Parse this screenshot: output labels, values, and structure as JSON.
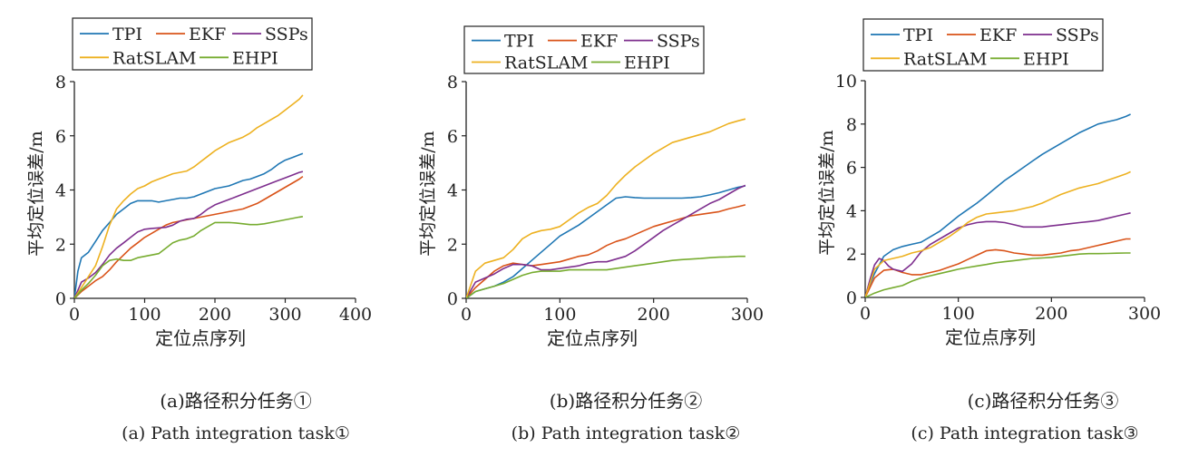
{
  "colors": {
    "TPI": "#1f77b4",
    "EKF": "#d95319",
    "SSPs": "#7e2f8e",
    "RatSLAM": "#edb120",
    "EHPI": "#77ac30"
  },
  "legend_labels": [
    "TPI",
    "EKF",
    "SSPs",
    "RatSLAM",
    "EHPI"
  ],
  "captions": [
    {
      "zh": "(a)路径积分任务①",
      "en": "(a) Path integration task①"
    },
    {
      "zh": "(b)路径积分任务②",
      "en": "(b) Path integration task②"
    },
    {
      "zh": "(c)路径积分任务③",
      "en": "(c) Path integration task③"
    }
  ],
  "chart_data": [
    {
      "type": "line",
      "xlabel": "定位点序列",
      "ylabel": "平均定位误差/m",
      "xlim": [
        0,
        400
      ],
      "ylim": [
        0,
        8
      ],
      "xticks": [
        0,
        100,
        200,
        300,
        400
      ],
      "yticks": [
        0,
        2,
        4,
        6,
        8
      ],
      "legend_position": "top",
      "series": [
        {
          "name": "TPI",
          "x": [
            0,
            5,
            10,
            20,
            30,
            40,
            50,
            60,
            70,
            80,
            90,
            100,
            110,
            120,
            130,
            140,
            150,
            160,
            170,
            180,
            190,
            200,
            210,
            220,
            230,
            240,
            250,
            260,
            270,
            280,
            290,
            300,
            310,
            320,
            325
          ],
          "y": [
            0,
            1.0,
            1.5,
            1.7,
            2.1,
            2.5,
            2.8,
            3.1,
            3.3,
            3.5,
            3.6,
            3.6,
            3.6,
            3.55,
            3.6,
            3.65,
            3.7,
            3.7,
            3.75,
            3.85,
            3.95,
            4.05,
            4.1,
            4.15,
            4.25,
            4.35,
            4.4,
            4.5,
            4.6,
            4.75,
            4.95,
            5.1,
            5.2,
            5.3,
            5.35
          ]
        },
        {
          "name": "EKF",
          "x": [
            0,
            10,
            20,
            30,
            40,
            50,
            60,
            70,
            80,
            90,
            100,
            110,
            120,
            130,
            140,
            150,
            160,
            170,
            180,
            190,
            200,
            210,
            220,
            230,
            240,
            250,
            260,
            270,
            280,
            290,
            300,
            310,
            320,
            325
          ],
          "y": [
            0,
            0.25,
            0.45,
            0.65,
            0.8,
            1.05,
            1.35,
            1.6,
            1.85,
            2.05,
            2.25,
            2.4,
            2.55,
            2.7,
            2.8,
            2.85,
            2.9,
            2.95,
            3.0,
            3.05,
            3.1,
            3.15,
            3.2,
            3.25,
            3.3,
            3.4,
            3.5,
            3.65,
            3.8,
            3.95,
            4.1,
            4.25,
            4.4,
            4.5
          ]
        },
        {
          "name": "SSPs",
          "x": [
            0,
            10,
            20,
            30,
            40,
            50,
            60,
            70,
            80,
            90,
            100,
            110,
            120,
            130,
            140,
            150,
            160,
            170,
            180,
            190,
            200,
            210,
            220,
            230,
            240,
            250,
            260,
            270,
            280,
            290,
            300,
            310,
            320,
            325
          ],
          "y": [
            0,
            0.6,
            0.75,
            0.95,
            1.25,
            1.6,
            1.85,
            2.05,
            2.25,
            2.45,
            2.55,
            2.58,
            2.6,
            2.62,
            2.7,
            2.85,
            2.92,
            2.95,
            3.1,
            3.3,
            3.45,
            3.55,
            3.65,
            3.75,
            3.85,
            3.95,
            4.05,
            4.15,
            4.25,
            4.35,
            4.45,
            4.55,
            4.65,
            4.68
          ]
        },
        {
          "name": "RatSLAM",
          "x": [
            0,
            10,
            20,
            30,
            40,
            50,
            60,
            70,
            80,
            90,
            100,
            110,
            120,
            130,
            140,
            150,
            160,
            170,
            180,
            190,
            200,
            210,
            220,
            230,
            240,
            250,
            260,
            270,
            280,
            290,
            300,
            310,
            320,
            325
          ],
          "y": [
            0,
            0.4,
            0.8,
            1.2,
            1.9,
            2.7,
            3.3,
            3.6,
            3.85,
            4.05,
            4.15,
            4.3,
            4.4,
            4.5,
            4.6,
            4.65,
            4.7,
            4.85,
            5.05,
            5.25,
            5.45,
            5.6,
            5.75,
            5.85,
            5.95,
            6.1,
            6.3,
            6.45,
            6.6,
            6.75,
            6.95,
            7.15,
            7.35,
            7.5
          ]
        },
        {
          "name": "EHPI",
          "x": [
            0,
            10,
            20,
            30,
            40,
            50,
            60,
            70,
            80,
            90,
            100,
            110,
            120,
            130,
            140,
            150,
            160,
            170,
            180,
            190,
            200,
            210,
            220,
            230,
            240,
            250,
            260,
            270,
            280,
            290,
            300,
            310,
            320,
            325
          ],
          "y": [
            0,
            0.3,
            0.55,
            0.85,
            1.2,
            1.4,
            1.45,
            1.4,
            1.4,
            1.5,
            1.55,
            1.6,
            1.65,
            1.85,
            2.05,
            2.15,
            2.2,
            2.3,
            2.5,
            2.65,
            2.8,
            2.8,
            2.8,
            2.78,
            2.75,
            2.72,
            2.72,
            2.75,
            2.8,
            2.85,
            2.9,
            2.95,
            3.0,
            3.02
          ]
        }
      ]
    },
    {
      "type": "line",
      "xlabel": "定位点序列",
      "ylabel": "平均定位误差/m",
      "xlim": [
        0,
        300
      ],
      "ylim": [
        0,
        8
      ],
      "xticks": [
        0,
        100,
        200,
        300
      ],
      "yticks": [
        0,
        2,
        4,
        6,
        8
      ],
      "legend_position": "top",
      "series": [
        {
          "name": "TPI",
          "x": [
            0,
            10,
            20,
            30,
            40,
            50,
            60,
            70,
            80,
            90,
            100,
            110,
            120,
            130,
            140,
            150,
            160,
            170,
            180,
            190,
            200,
            210,
            220,
            230,
            240,
            250,
            260,
            270,
            280,
            290,
            298
          ],
          "y": [
            0,
            0.25,
            0.35,
            0.45,
            0.6,
            0.8,
            1.1,
            1.4,
            1.7,
            2.0,
            2.3,
            2.5,
            2.7,
            2.95,
            3.2,
            3.45,
            3.7,
            3.75,
            3.72,
            3.7,
            3.7,
            3.7,
            3.7,
            3.7,
            3.72,
            3.75,
            3.82,
            3.9,
            4.0,
            4.1,
            4.15
          ]
        },
        {
          "name": "EKF",
          "x": [
            0,
            10,
            20,
            30,
            40,
            50,
            60,
            70,
            80,
            90,
            100,
            110,
            120,
            130,
            140,
            150,
            160,
            170,
            180,
            190,
            200,
            210,
            220,
            230,
            240,
            250,
            260,
            270,
            280,
            290,
            298
          ],
          "y": [
            0,
            0.4,
            0.7,
            1.0,
            1.2,
            1.3,
            1.25,
            1.2,
            1.25,
            1.3,
            1.35,
            1.45,
            1.55,
            1.6,
            1.75,
            1.95,
            2.1,
            2.2,
            2.35,
            2.5,
            2.65,
            2.75,
            2.85,
            2.95,
            3.05,
            3.1,
            3.15,
            3.2,
            3.3,
            3.38,
            3.45
          ]
        },
        {
          "name": "SSPs",
          "x": [
            0,
            10,
            20,
            30,
            40,
            50,
            60,
            70,
            80,
            90,
            100,
            110,
            120,
            130,
            140,
            150,
            160,
            170,
            180,
            190,
            200,
            210,
            220,
            230,
            240,
            250,
            260,
            270,
            280,
            290,
            298
          ],
          "y": [
            0,
            0.6,
            0.75,
            0.9,
            1.1,
            1.25,
            1.25,
            1.2,
            1.05,
            1.05,
            1.1,
            1.15,
            1.2,
            1.3,
            1.35,
            1.35,
            1.45,
            1.55,
            1.75,
            2.0,
            2.25,
            2.5,
            2.7,
            2.9,
            3.1,
            3.3,
            3.5,
            3.65,
            3.85,
            4.05,
            4.17
          ]
        },
        {
          "name": "RatSLAM",
          "x": [
            0,
            10,
            20,
            30,
            40,
            50,
            60,
            70,
            80,
            90,
            100,
            110,
            120,
            130,
            140,
            150,
            160,
            170,
            180,
            190,
            200,
            210,
            220,
            230,
            240,
            250,
            260,
            270,
            280,
            290,
            298
          ],
          "y": [
            0,
            1.0,
            1.3,
            1.4,
            1.5,
            1.8,
            2.2,
            2.4,
            2.5,
            2.55,
            2.65,
            2.9,
            3.15,
            3.35,
            3.5,
            3.8,
            4.2,
            4.55,
            4.85,
            5.1,
            5.35,
            5.55,
            5.75,
            5.85,
            5.95,
            6.05,
            6.15,
            6.3,
            6.45,
            6.55,
            6.62
          ]
        },
        {
          "name": "EHPI",
          "x": [
            0,
            10,
            20,
            30,
            40,
            50,
            60,
            70,
            80,
            90,
            100,
            110,
            120,
            130,
            140,
            150,
            160,
            170,
            180,
            190,
            200,
            210,
            220,
            230,
            240,
            250,
            260,
            270,
            280,
            290,
            298
          ],
          "y": [
            0,
            0.25,
            0.35,
            0.45,
            0.55,
            0.7,
            0.85,
            0.95,
            1.0,
            1.0,
            1.0,
            1.05,
            1.05,
            1.05,
            1.05,
            1.05,
            1.1,
            1.15,
            1.2,
            1.25,
            1.3,
            1.35,
            1.4,
            1.43,
            1.45,
            1.47,
            1.5,
            1.52,
            1.53,
            1.55,
            1.55
          ]
        }
      ]
    },
    {
      "type": "line",
      "xlabel": "定位点序列",
      "ylabel": "平均定位误差/m",
      "xlim": [
        0,
        300
      ],
      "ylim": [
        0,
        10
      ],
      "xticks": [
        0,
        100,
        200,
        300
      ],
      "yticks": [
        0,
        2,
        4,
        6,
        8,
        10
      ],
      "legend_position": "top",
      "series": [
        {
          "name": "TPI",
          "x": [
            0,
            5,
            10,
            15,
            20,
            30,
            40,
            50,
            60,
            70,
            80,
            90,
            100,
            110,
            120,
            130,
            140,
            150,
            160,
            170,
            180,
            190,
            200,
            210,
            220,
            230,
            240,
            250,
            260,
            270,
            280,
            285
          ],
          "y": [
            0,
            0.6,
            1.1,
            1.5,
            1.9,
            2.2,
            2.35,
            2.45,
            2.55,
            2.8,
            3.05,
            3.4,
            3.75,
            4.05,
            4.35,
            4.7,
            5.05,
            5.4,
            5.7,
            6.0,
            6.3,
            6.6,
            6.85,
            7.1,
            7.35,
            7.6,
            7.8,
            8.0,
            8.1,
            8.2,
            8.35,
            8.45
          ]
        },
        {
          "name": "EKF",
          "x": [
            0,
            10,
            20,
            30,
            40,
            50,
            60,
            70,
            80,
            90,
            100,
            110,
            120,
            130,
            140,
            150,
            160,
            170,
            180,
            190,
            200,
            210,
            220,
            230,
            240,
            250,
            260,
            270,
            280,
            285
          ],
          "y": [
            0,
            0.9,
            1.25,
            1.3,
            1.15,
            1.05,
            1.05,
            1.15,
            1.25,
            1.4,
            1.55,
            1.75,
            1.95,
            2.15,
            2.2,
            2.15,
            2.05,
            2.0,
            1.95,
            1.95,
            2.0,
            2.05,
            2.15,
            2.2,
            2.3,
            2.4,
            2.5,
            2.6,
            2.7,
            2.7
          ]
        },
        {
          "name": "SSPs",
          "x": [
            0,
            5,
            10,
            15,
            20,
            25,
            30,
            40,
            50,
            60,
            70,
            80,
            90,
            100,
            110,
            120,
            130,
            140,
            150,
            160,
            170,
            180,
            190,
            200,
            210,
            220,
            230,
            240,
            250,
            260,
            270,
            280,
            285
          ],
          "y": [
            0,
            0.8,
            1.5,
            1.8,
            1.7,
            1.45,
            1.3,
            1.2,
            1.55,
            2.1,
            2.45,
            2.7,
            2.95,
            3.2,
            3.35,
            3.45,
            3.5,
            3.5,
            3.45,
            3.35,
            3.25,
            3.25,
            3.25,
            3.3,
            3.35,
            3.4,
            3.45,
            3.5,
            3.55,
            3.65,
            3.75,
            3.85,
            3.9
          ]
        },
        {
          "name": "RatSLAM",
          "x": [
            0,
            10,
            20,
            30,
            40,
            50,
            60,
            70,
            80,
            90,
            100,
            110,
            120,
            130,
            140,
            150,
            160,
            170,
            180,
            190,
            200,
            210,
            220,
            230,
            240,
            250,
            260,
            270,
            280,
            285
          ],
          "y": [
            0,
            1.3,
            1.7,
            1.8,
            1.9,
            2.05,
            2.15,
            2.3,
            2.55,
            2.8,
            3.1,
            3.45,
            3.7,
            3.85,
            3.9,
            3.95,
            4.0,
            4.1,
            4.2,
            4.35,
            4.55,
            4.75,
            4.9,
            5.05,
            5.15,
            5.25,
            5.4,
            5.55,
            5.7,
            5.8
          ]
        },
        {
          "name": "EHPI",
          "x": [
            0,
            10,
            20,
            30,
            40,
            50,
            60,
            70,
            80,
            90,
            100,
            110,
            120,
            130,
            140,
            150,
            160,
            170,
            180,
            190,
            200,
            210,
            220,
            230,
            240,
            250,
            260,
            270,
            280,
            285
          ],
          "y": [
            0,
            0.2,
            0.35,
            0.45,
            0.55,
            0.75,
            0.9,
            1.0,
            1.1,
            1.2,
            1.3,
            1.38,
            1.45,
            1.52,
            1.6,
            1.65,
            1.7,
            1.75,
            1.8,
            1.82,
            1.85,
            1.9,
            1.95,
            2.0,
            2.02,
            2.02,
            2.03,
            2.04,
            2.05,
            2.05
          ]
        }
      ]
    }
  ]
}
